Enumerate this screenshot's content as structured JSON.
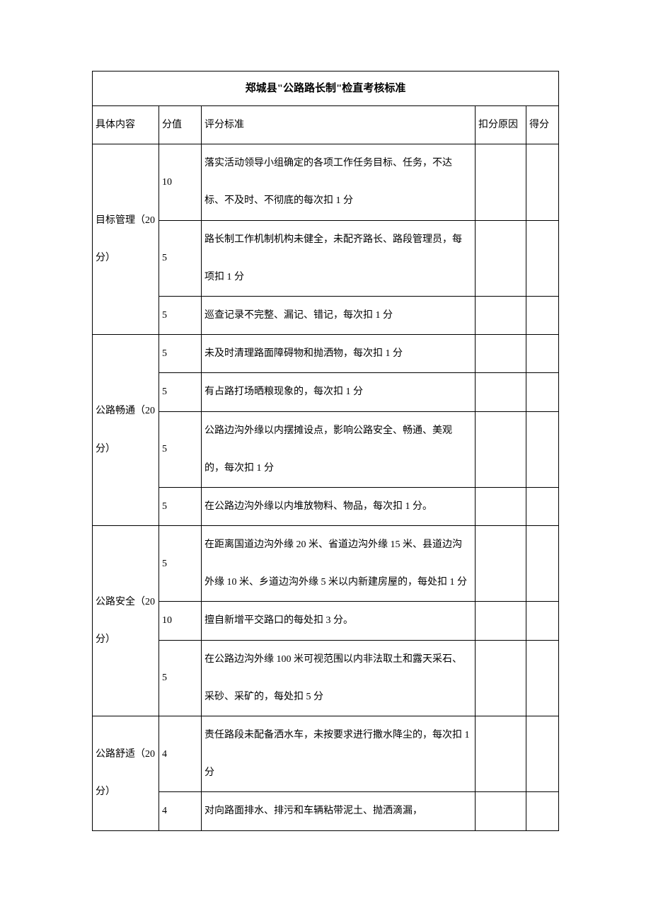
{
  "table": {
    "title": "郑城县\"公路路长制\"检直考核标准",
    "headers": {
      "category": "具体内容",
      "score": "分值",
      "criteria": "评分标准",
      "reason": "扣分原因",
      "gotscore": "得分"
    },
    "sections": [
      {
        "category": "目标管理（20分）",
        "rows": [
          {
            "score": "10",
            "criteria": "落实活动领导小组确定的各项工作任务目标、任务，不达标、不及时、不彻底的每次扣 1 分"
          },
          {
            "score": "5",
            "criteria": "路长制工作机制机构未健全，未配齐路长、路段管理员，每项扣 1 分"
          },
          {
            "score": "5",
            "criteria": "巡查记录不完整、漏记、错记，每次扣 1 分"
          }
        ]
      },
      {
        "category": "公路畅通（20分）",
        "rows": [
          {
            "score": "5",
            "criteria": "未及时清理路面障碍物和抛洒物，每次扣 1 分"
          },
          {
            "score": "5",
            "criteria": "有占路打场晒粮现象的，每次扣 1 分"
          },
          {
            "score": "5",
            "criteria": "公路边沟外缘以内摆摊设点，影响公路安全、畅通、美观的，每次扣 1 分"
          },
          {
            "score": "5",
            "criteria": "在公路边沟外缘以内堆放物料、物品，每次扣 1 分。"
          }
        ]
      },
      {
        "category": "公路安全（20分）",
        "rows": [
          {
            "score": "5",
            "criteria": "在距离国道边沟外缘 20 米、省道边沟外缘 15 米、县道边沟外缘 10 米、乡道边沟外缘 5 米以内新建房屋的，每处扣 1 分"
          },
          {
            "score": "10",
            "criteria": "擅自新增平交路口的每处扣 3 分。"
          },
          {
            "score": "5",
            "criteria": "在公路边沟外缘 100 米可视范围以内非法取土和露天采石、采砂、采矿的，每处扣 5 分"
          }
        ]
      },
      {
        "category": "公路舒适（20分）",
        "rows": [
          {
            "score": "4",
            "criteria": "责任路段未配备洒水车，未按要求进行撒水降尘的，每次扣 1 分"
          },
          {
            "score": "4",
            "criteria": "对向路面排水、排污和车辆粘带泥土、抛洒滴漏，"
          }
        ]
      }
    ],
    "styling": {
      "border_color": "#000000",
      "background_color": "#ffffff",
      "text_color": "#000000",
      "font_family": "SimSun",
      "col_widths": {
        "category": 94,
        "score": 60,
        "reason": 72,
        "gotscore": 46
      },
      "title_fontsize": 15,
      "body_fontsize": 14,
      "line_height": 3.8
    }
  }
}
